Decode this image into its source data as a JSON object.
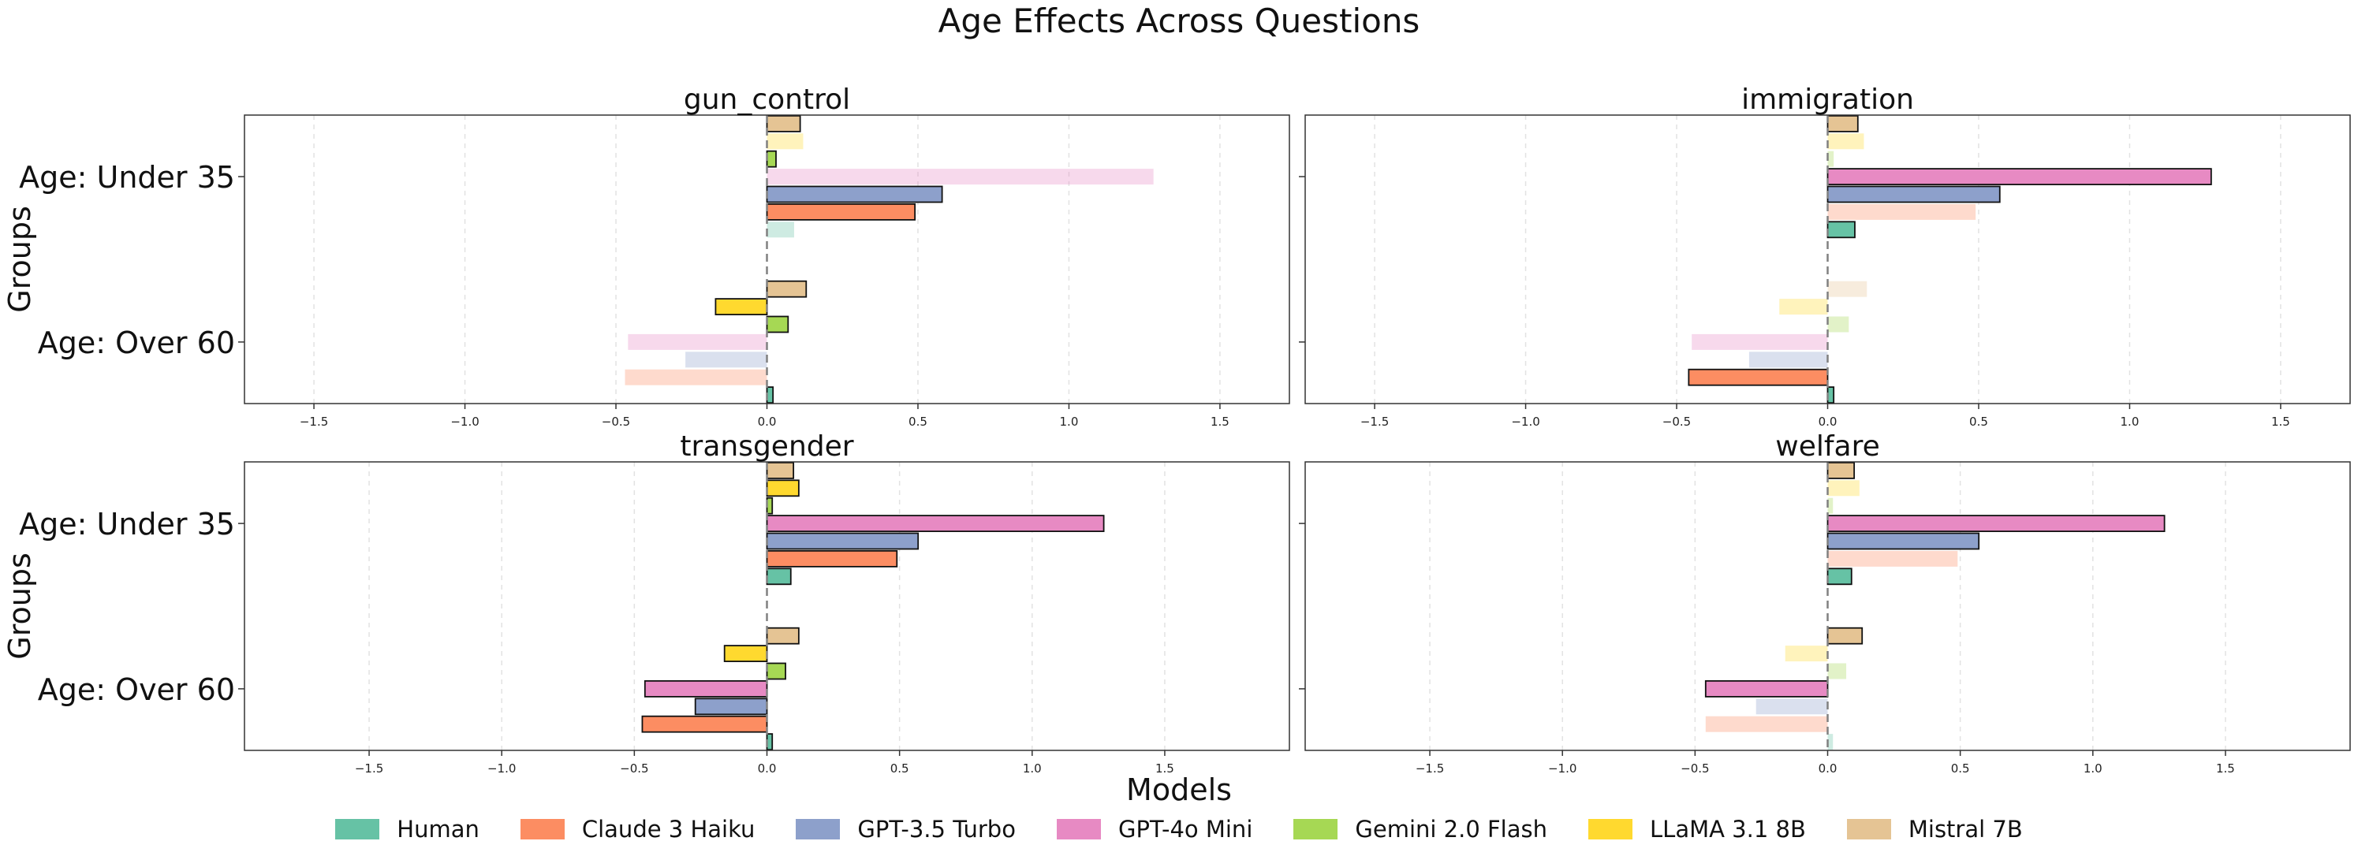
{
  "chart_data": {
    "type": "bar",
    "orientation": "horizontal",
    "title": "Age Effects Across Questions",
    "xlabel": "Models",
    "ylabel": "Groups",
    "groups": [
      "Age: Under 35",
      "Age: Over 60"
    ],
    "legend_placement": "bottom-center",
    "grid": "vertical dashed",
    "series": [
      {
        "name": "Human",
        "color": "#66c2a5"
      },
      {
        "name": "Claude 3 Haiku",
        "color": "#fc8d62"
      },
      {
        "name": "GPT-3.5 Turbo",
        "color": "#8da0cb"
      },
      {
        "name": "GPT-4o Mini",
        "color": "#e78ac3"
      },
      {
        "name": "Gemini 2.0 Flash",
        "color": "#a6d854"
      },
      {
        "name": "LLaMA 3.1 8B",
        "color": "#ffd92f"
      },
      {
        "name": "Mistral 7B",
        "color": "#e5c494"
      }
    ],
    "panels": [
      {
        "title": "gun_control",
        "xlim": [
          -1.73,
          1.73
        ],
        "xticks": [
          -1.5,
          -1.0,
          -0.5,
          0.0,
          0.5,
          1.0,
          1.5
        ],
        "xtick_labels": [
          "−1.5",
          "−1.0",
          "−0.5",
          "0.0",
          "0.5",
          "1.0",
          "1.5"
        ],
        "values": {
          "Age: Under 35": [
            0.09,
            0.49,
            0.58,
            1.28,
            0.03,
            0.12,
            0.11
          ],
          "Age: Over 60": [
            0.02,
            -0.47,
            -0.27,
            -0.46,
            0.07,
            -0.17,
            0.13
          ]
        },
        "highlight": {
          "Age: Under 35": [
            false,
            true,
            true,
            false,
            true,
            false,
            true
          ],
          "Age: Over 60": [
            true,
            false,
            false,
            false,
            true,
            true,
            true
          ]
        }
      },
      {
        "title": "immigration",
        "xlim": [
          -1.73,
          1.73
        ],
        "xticks": [
          -1.5,
          -1.0,
          -0.5,
          0.0,
          0.5,
          1.0,
          1.5
        ],
        "xtick_labels": [
          "−1.5",
          "−1.0",
          "−0.5",
          "0.0",
          "0.5",
          "1.0",
          "1.5"
        ],
        "values": {
          "Age: Under 35": [
            0.09,
            0.49,
            0.57,
            1.27,
            0.02,
            0.12,
            0.1
          ],
          "Age: Over 60": [
            0.02,
            -0.46,
            -0.26,
            -0.45,
            0.07,
            -0.16,
            0.13
          ]
        },
        "highlight": {
          "Age: Under 35": [
            true,
            false,
            true,
            true,
            false,
            false,
            true
          ],
          "Age: Over 60": [
            true,
            true,
            false,
            false,
            false,
            false,
            false
          ]
        }
      },
      {
        "title": "transgender",
        "xlim": [
          -1.97,
          1.97
        ],
        "xticks": [
          -1.5,
          -1.0,
          -0.5,
          0.0,
          0.5,
          1.0,
          1.5
        ],
        "xtick_labels": [
          "−1.5",
          "−1.0",
          "−0.5",
          "0.0",
          "0.5",
          "1.0",
          "1.5"
        ],
        "values": {
          "Age: Under 35": [
            0.09,
            0.49,
            0.57,
            1.27,
            0.02,
            0.12,
            0.1
          ],
          "Age: Over 60": [
            0.02,
            -0.47,
            -0.27,
            -0.46,
            0.07,
            -0.16,
            0.12
          ]
        },
        "highlight": {
          "Age: Under 35": [
            true,
            true,
            true,
            true,
            true,
            true,
            true
          ],
          "Age: Over 60": [
            true,
            true,
            true,
            true,
            true,
            true,
            true
          ]
        }
      },
      {
        "title": "welfare",
        "xlim": [
          -1.97,
          1.97
        ],
        "xticks": [
          -1.5,
          -1.0,
          -0.5,
          0.0,
          0.5,
          1.0,
          1.5
        ],
        "xtick_labels": [
          "−1.5",
          "−1.0",
          "−0.5",
          "0.0",
          "0.5",
          "1.0",
          "1.5"
        ],
        "values": {
          "Age: Under 35": [
            0.09,
            0.49,
            0.57,
            1.27,
            0.02,
            0.12,
            0.1
          ],
          "Age: Over 60": [
            0.02,
            -0.46,
            -0.27,
            -0.46,
            0.07,
            -0.16,
            0.13
          ]
        },
        "highlight": {
          "Age: Under 35": [
            true,
            false,
            true,
            true,
            false,
            false,
            true
          ],
          "Age: Over 60": [
            false,
            false,
            false,
            true,
            false,
            false,
            true
          ]
        }
      }
    ]
  }
}
